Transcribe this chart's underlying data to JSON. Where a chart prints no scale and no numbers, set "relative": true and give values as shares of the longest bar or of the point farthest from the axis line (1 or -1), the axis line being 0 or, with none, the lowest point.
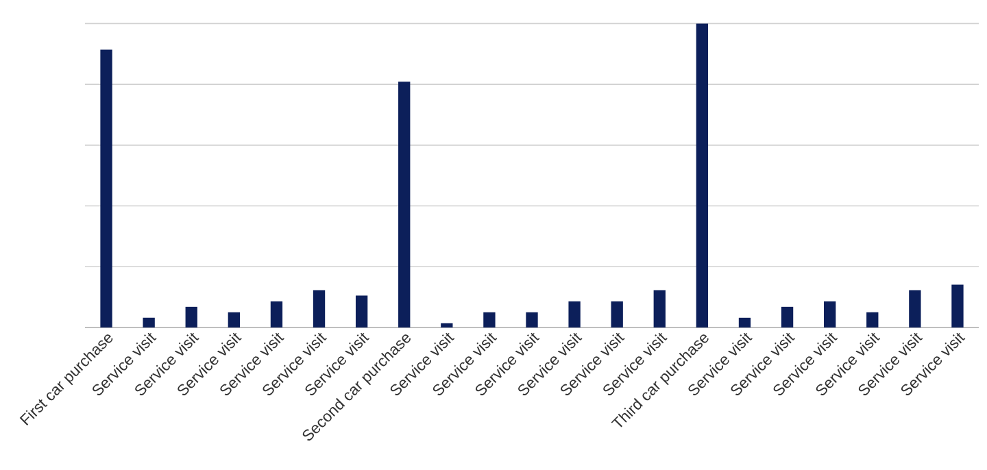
{
  "chart_data": {
    "type": "bar",
    "relative": true,
    "grid": "y",
    "color": "#0c1f5a",
    "categories": [
      "First car purchase",
      "Service visit",
      "Service visit",
      "Service visit",
      "Service visit",
      "Service visit",
      "Service visit",
      "Second car purchase",
      "Service visit",
      "Service visit",
      "Service visit",
      "Service visit",
      "Service visit",
      "Service visit",
      "Third car purchase",
      "Service visit",
      "Service visit",
      "Service visit",
      "Service visit",
      "Service visit",
      "Service visit"
    ],
    "values": [
      0.914,
      0.032,
      0.068,
      0.05,
      0.086,
      0.123,
      0.105,
      0.809,
      0.014,
      0.05,
      0.05,
      0.086,
      0.086,
      0.123,
      1,
      0.032,
      0.068,
      0.086,
      0.05,
      0.123,
      0.141
    ]
  }
}
